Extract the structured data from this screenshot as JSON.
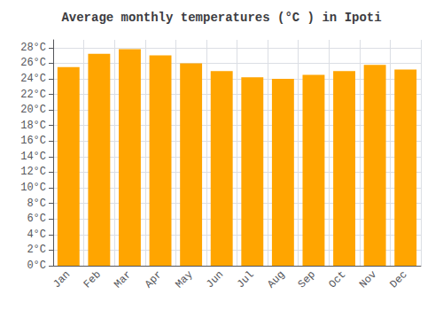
{
  "chart_data": {
    "type": "bar",
    "title": "Average monthly temperatures (°C ) in Ipoti",
    "categories": [
      "Jan",
      "Feb",
      "Mar",
      "Apr",
      "May",
      "Jun",
      "Jul",
      "Aug",
      "Sep",
      "Oct",
      "Nov",
      "Dec"
    ],
    "values": [
      25.5,
      27.2,
      27.8,
      27.0,
      26.0,
      25.0,
      24.2,
      24.0,
      24.5,
      25.0,
      25.8,
      25.2
    ],
    "color": "#FFA500",
    "ylim": [
      0,
      29
    ],
    "yticks": [
      {
        "value": 0,
        "label": "0°C"
      },
      {
        "value": 2,
        "label": "2°C"
      },
      {
        "value": 4,
        "label": "4°C"
      },
      {
        "value": 6,
        "label": "6°C"
      },
      {
        "value": 8,
        "label": "8°C"
      },
      {
        "value": 10,
        "label": "10°C"
      },
      {
        "value": 12,
        "label": "12°C"
      },
      {
        "value": 14,
        "label": "14°C"
      },
      {
        "value": 16,
        "label": "16°C"
      },
      {
        "value": 18,
        "label": "18°C"
      },
      {
        "value": 20,
        "label": "20°C"
      },
      {
        "value": 22,
        "label": "22°C"
      },
      {
        "value": 24,
        "label": "24°C"
      },
      {
        "value": 26,
        "label": "26°C"
      },
      {
        "value": 28,
        "label": "28°C"
      }
    ],
    "grid": true
  }
}
